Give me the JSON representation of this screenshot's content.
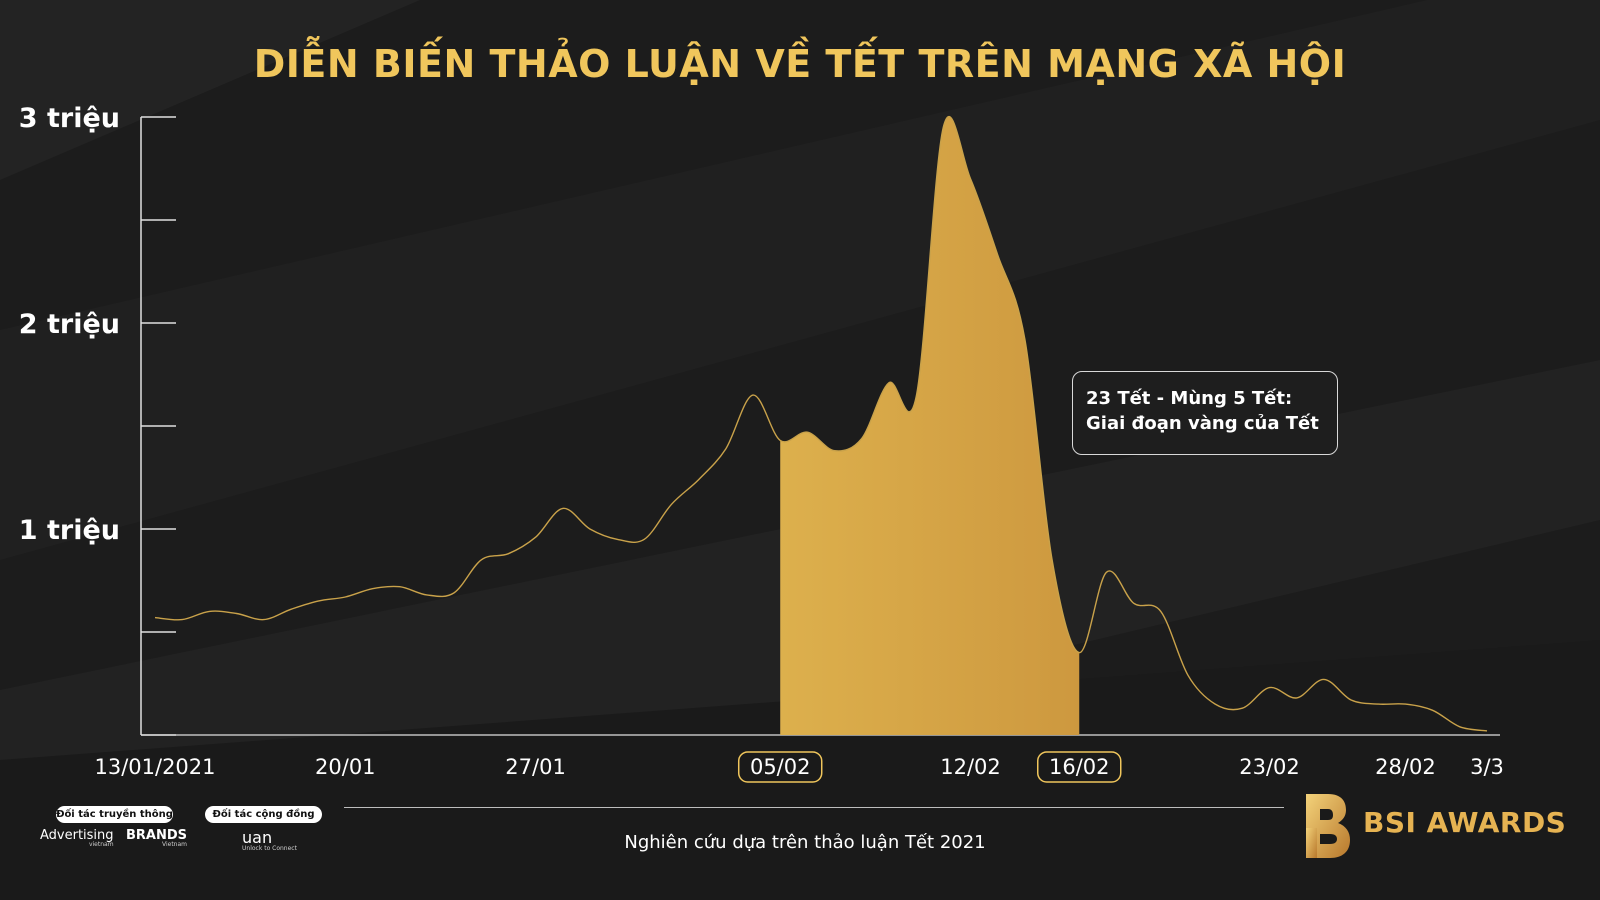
{
  "title": "DIỄN BIẾN THẢO LUẬN VỀ TẾT TRÊN MẠNG XÃ HỘI",
  "callout": {
    "line1": "23 Tết - Mùng 5 Tết:",
    "line2": "Giai đoạn vàng của Tết"
  },
  "footnote": "Nghiên cứu dựa trên thảo luận Tết 2021",
  "partners": {
    "media_label": "Đối tác truyền thông",
    "community_label": "Đối tác cộng đồng",
    "advertising_logo": "Advertising",
    "advertising_sub": "vietnam",
    "brands_logo": "BRANDS",
    "brands_sub": "Vietnam",
    "uan_logo": "uan",
    "uan_sub": "Unlock to Connect"
  },
  "brand": {
    "name": "BSI AWARDS"
  },
  "colors": {
    "background": "#1c1c1c",
    "gold": "#f0c65c",
    "line": "#c9a24a",
    "highlight_start": "#f7ea8a",
    "highlight_end": "#b8782c"
  },
  "chart_data": {
    "type": "area",
    "title": "DIỄN BIẾN THẢO LUẬN VỀ TẾT TRÊN MẠNG XÃ HỘI",
    "xlabel": "",
    "ylabel": "",
    "ylim": [
      0,
      3000000
    ],
    "y_ticks": [
      0,
      500000,
      1000000,
      1500000,
      2000000,
      2500000,
      3000000
    ],
    "y_tick_labels": [
      {
        "value": 1000000,
        "label": "1 triệu"
      },
      {
        "value": 2000000,
        "label": "2 triệu"
      },
      {
        "value": 3000000,
        "label": "3 triệu"
      }
    ],
    "x_tick_labels": [
      {
        "date": "2021-01-13",
        "label": "13/01/2021",
        "boxed": false
      },
      {
        "date": "2021-01-20",
        "label": "20/01",
        "boxed": false
      },
      {
        "date": "2021-01-27",
        "label": "27/01",
        "boxed": false
      },
      {
        "date": "2021-02-05",
        "label": "05/02",
        "boxed": true
      },
      {
        "date": "2021-02-12",
        "label": "12/02",
        "boxed": false
      },
      {
        "date": "2021-02-16",
        "label": "16/02",
        "boxed": true
      },
      {
        "date": "2021-02-23",
        "label": "23/02",
        "boxed": false
      },
      {
        "date": "2021-02-28",
        "label": "28/02",
        "boxed": false
      },
      {
        "date": "2021-03-03",
        "label": "3/3",
        "boxed": false
      }
    ],
    "highlight": {
      "start": "2021-02-05",
      "end": "2021-02-16"
    },
    "series": [
      {
        "values": [
          [
            "2021-01-13",
            570000
          ],
          [
            "2021-01-14",
            560000
          ],
          [
            "2021-01-15",
            600000
          ],
          [
            "2021-01-16",
            590000
          ],
          [
            "2021-01-17",
            560000
          ],
          [
            "2021-01-18",
            610000
          ],
          [
            "2021-01-19",
            650000
          ],
          [
            "2021-01-20",
            670000
          ],
          [
            "2021-01-21",
            710000
          ],
          [
            "2021-01-22",
            720000
          ],
          [
            "2021-01-23",
            680000
          ],
          [
            "2021-01-24",
            690000
          ],
          [
            "2021-01-25",
            850000
          ],
          [
            "2021-01-26",
            880000
          ],
          [
            "2021-01-27",
            960000
          ],
          [
            "2021-01-28",
            1100000
          ],
          [
            "2021-01-29",
            1000000
          ],
          [
            "2021-01-30",
            950000
          ],
          [
            "2021-01-31",
            950000
          ],
          [
            "2021-02-01",
            1120000
          ],
          [
            "2021-02-02",
            1240000
          ],
          [
            "2021-02-03",
            1390000
          ],
          [
            "2021-02-04",
            1650000
          ],
          [
            "2021-02-05",
            1430000
          ],
          [
            "2021-02-06",
            1470000
          ],
          [
            "2021-02-07",
            1380000
          ],
          [
            "2021-02-08",
            1440000
          ],
          [
            "2021-02-09",
            1710000
          ],
          [
            "2021-02-10",
            1640000
          ],
          [
            "2021-02-11",
            2950000
          ],
          [
            "2021-02-12",
            2700000
          ],
          [
            "2021-02-13",
            2330000
          ],
          [
            "2021-02-14",
            1920000
          ],
          [
            "2021-02-15",
            850000
          ],
          [
            "2021-02-16",
            400000
          ],
          [
            "2021-02-17",
            790000
          ],
          [
            "2021-02-18",
            640000
          ],
          [
            "2021-02-19",
            600000
          ],
          [
            "2021-02-20",
            290000
          ],
          [
            "2021-02-21",
            150000
          ],
          [
            "2021-02-22",
            130000
          ],
          [
            "2021-02-23",
            230000
          ],
          [
            "2021-02-24",
            180000
          ],
          [
            "2021-02-25",
            270000
          ],
          [
            "2021-02-26",
            170000
          ],
          [
            "2021-02-27",
            150000
          ],
          [
            "2021-02-28",
            150000
          ],
          [
            "2021-03-01",
            120000
          ],
          [
            "2021-03-02",
            40000
          ],
          [
            "2021-03-03",
            20000
          ]
        ]
      }
    ],
    "grid": false,
    "legend": "none"
  }
}
